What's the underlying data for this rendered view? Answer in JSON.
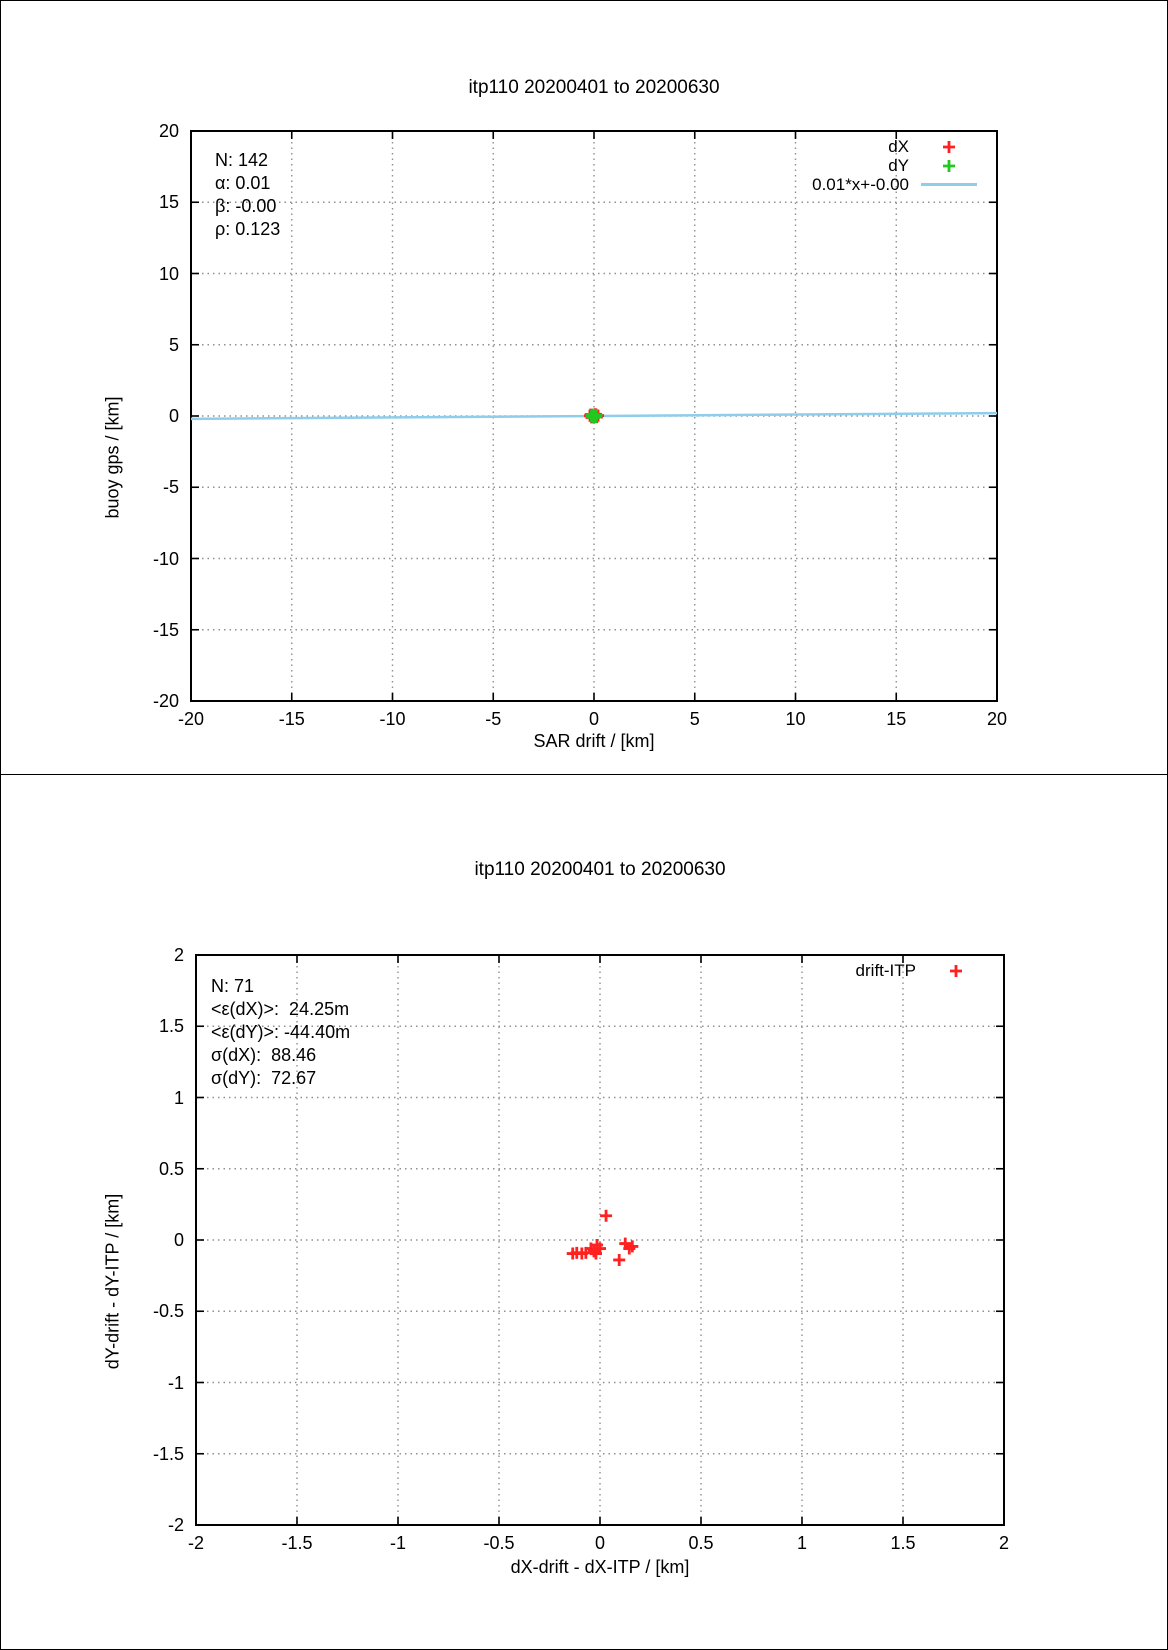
{
  "colors": {
    "red": "#ff2020",
    "green": "#20c820",
    "fit_line": "#8ecdec",
    "grid": "#909090",
    "axis": "#000000"
  },
  "chart_data": [
    {
      "type": "scatter",
      "title": "itp110 20200401 to 20200630",
      "xlabel": "SAR drift / [km]",
      "ylabel": "buoy gps / [km]",
      "xlim": [
        -20,
        20
      ],
      "ylim": [
        -20,
        20
      ],
      "tick_step": 5,
      "grid": true,
      "legend_position": "top-right",
      "stats": [
        "N: 142",
        "α: 0.01",
        "β: -0.00",
        "ρ: 0.123"
      ],
      "fit": {
        "label": "0.01*x+-0.00",
        "slope": 0.01,
        "intercept": -0.0,
        "color": "fit_line"
      },
      "legend": [
        {
          "label": "dX",
          "marker": "plus",
          "color": "red"
        },
        {
          "label": "dY",
          "marker": "plus",
          "color": "green"
        },
        {
          "label": "0.01*x+-0.00",
          "marker": "line",
          "color": "fit_line"
        }
      ],
      "series": [
        {
          "name": "dX",
          "color": "red",
          "points": [
            [
              -0.2,
              0.02
            ],
            [
              -0.12,
              -0.1
            ],
            [
              -0.04,
              0.08
            ],
            [
              0.0,
              -0.05
            ],
            [
              0.07,
              0.12
            ],
            [
              0.14,
              -0.08
            ],
            [
              0.2,
              0.03
            ],
            [
              0.1,
              0.1
            ],
            [
              -0.16,
              0.1
            ]
          ]
        },
        {
          "name": "dY",
          "color": "green",
          "points": [
            [
              -0.1,
              0.03
            ],
            [
              -0.04,
              -0.05
            ],
            [
              0.0,
              0.07
            ],
            [
              0.04,
              0.0
            ],
            [
              0.09,
              -0.07
            ],
            [
              -0.06,
              0.1
            ],
            [
              0.12,
              0.04
            ],
            [
              0.0,
              -0.1
            ],
            [
              -0.13,
              -0.02
            ]
          ]
        }
      ]
    },
    {
      "type": "scatter",
      "title": "itp110 20200401 to 20200630",
      "xlabel": "dX-drift - dX-ITP / [km]",
      "ylabel": "dY-drift - dY-ITP / [km]",
      "xlim": [
        -2,
        2
      ],
      "ylim": [
        -2,
        2
      ],
      "tick_step": 0.5,
      "grid": true,
      "legend_position": "top-right",
      "stats": [
        "N: 71",
        "<ε(dX)>:  24.25m",
        "<ε(dY)>: -44.40m",
        "σ(dX):  88.46",
        "σ(dY):  72.67"
      ],
      "legend": [
        {
          "label": "drift-ITP",
          "marker": "plus",
          "color": "red"
        }
      ],
      "series": [
        {
          "name": "drift-ITP",
          "color": "red",
          "points": [
            [
              0.03,
              0.17
            ],
            [
              -0.135,
              -0.095
            ],
            [
              -0.115,
              -0.09
            ],
            [
              -0.09,
              -0.095
            ],
            [
              -0.07,
              -0.09
            ],
            [
              -0.045,
              -0.06
            ],
            [
              -0.03,
              -0.08
            ],
            [
              -0.015,
              -0.035
            ],
            [
              -0.02,
              -0.095
            ],
            [
              0.0,
              -0.06
            ],
            [
              0.125,
              -0.025
            ],
            [
              0.145,
              -0.06
            ],
            [
              0.16,
              -0.045
            ],
            [
              0.095,
              -0.14
            ]
          ]
        }
      ]
    }
  ]
}
